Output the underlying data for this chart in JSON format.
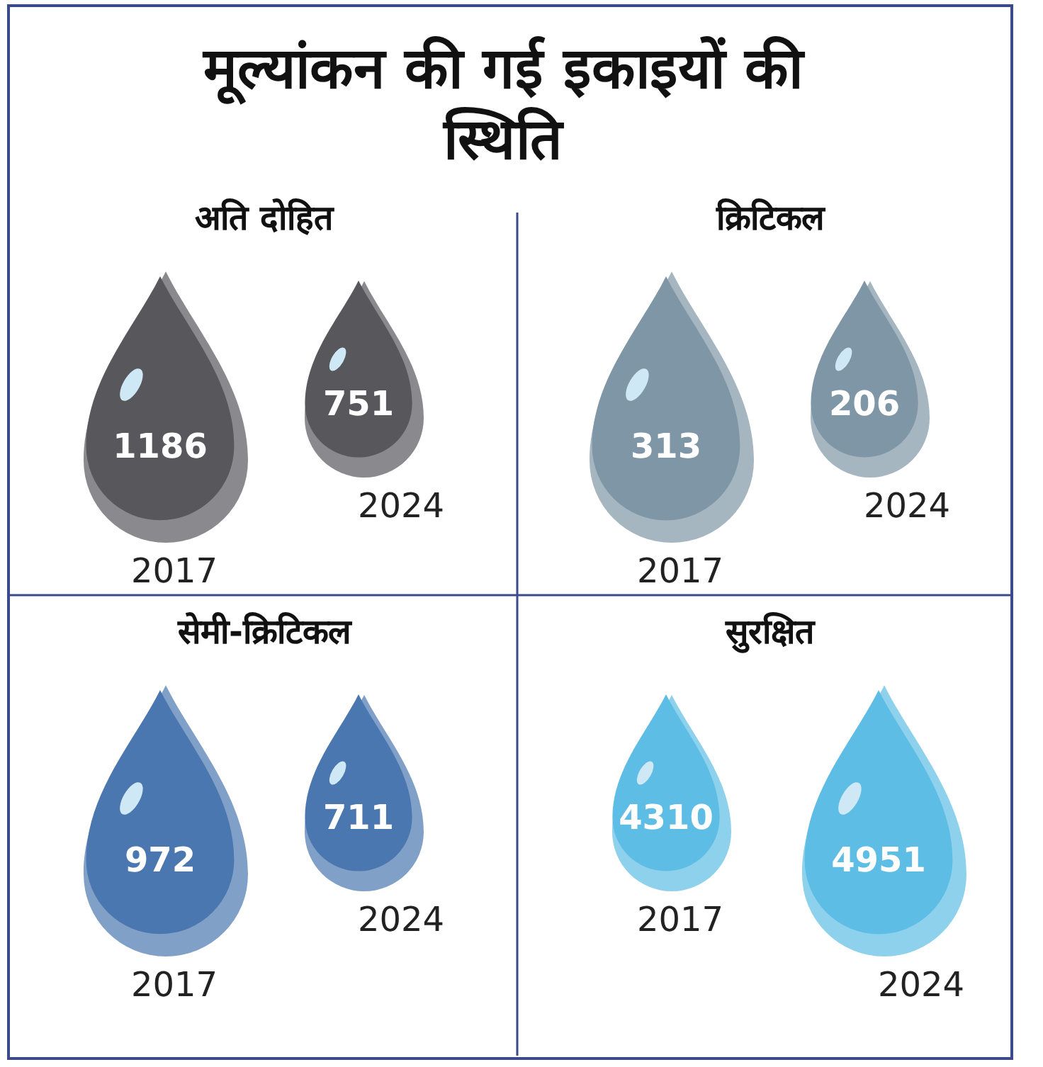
{
  "chart_data": [
    {
      "type": "other",
      "title": "मूल्यांकन की गई इकाइयों की स्थिति"
    },
    {
      "type": "other",
      "title": "अति दोहित",
      "categories": [
        "2017",
        "2024"
      ],
      "values": [
        1186,
        751
      ],
      "colors": [
        "#58575c",
        "#58575c"
      ],
      "data_labels": true
    },
    {
      "type": "other",
      "title": "क्रिटिकल",
      "categories": [
        "2017",
        "2024"
      ],
      "values": [
        313,
        206
      ],
      "colors": [
        "#7f96a6",
        "#7f96a6"
      ],
      "data_labels": true
    },
    {
      "type": "other",
      "title": "सेमी-क्रिटिकल",
      "categories": [
        "2017",
        "2024"
      ],
      "values": [
        972,
        711
      ],
      "colors": [
        "#4a77b0",
        "#4a77b0"
      ],
      "data_labels": true
    },
    {
      "type": "other",
      "title": "सुरक्षित",
      "categories": [
        "2017",
        "2024"
      ],
      "values": [
        4310,
        4951
      ],
      "colors": [
        "#5ebde4",
        "#5ebde4"
      ],
      "data_labels": true
    }
  ]
}
